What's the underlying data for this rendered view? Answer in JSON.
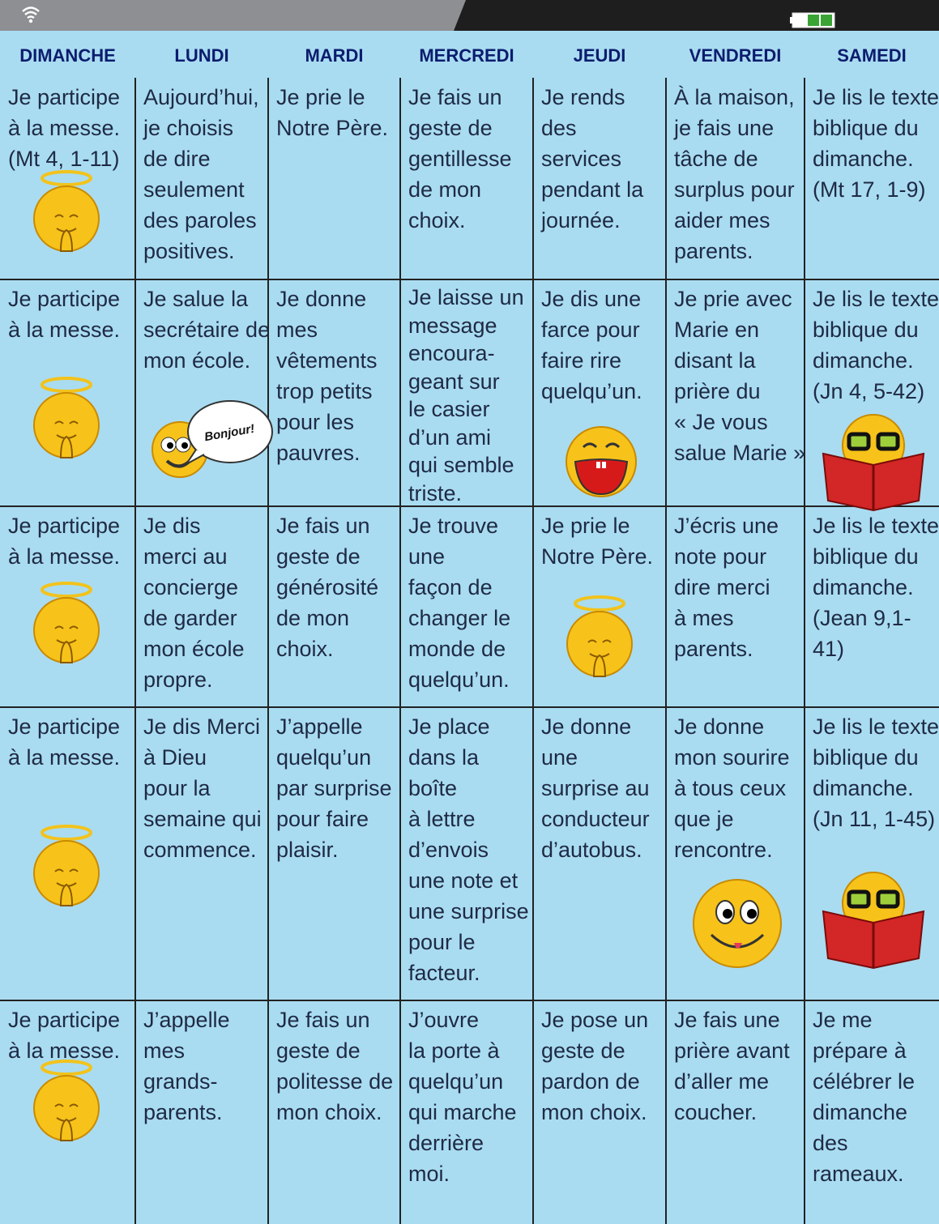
{
  "header": {
    "days": [
      "DIMANCHE",
      "LUNDI",
      "MARDI",
      "MERCREDI",
      "JEUDI",
      "VENDREDI",
      "SAMEDI"
    ]
  },
  "table": {
    "rows": [
      [
        {
          "lines": [
            "Je participe",
            "à la messe.",
            "(Mt 4, 1-11)"
          ]
        },
        {
          "lines": [
            "Aujourd’hui,",
            "je choisis",
            "de dire",
            "seulement",
            "des paroles",
            "positives."
          ]
        },
        {
          "lines": [
            "Je prie le",
            "Notre Père."
          ]
        },
        {
          "lines": [
            "Je fais un",
            "geste de",
            "gentillesse",
            "de mon",
            "choix."
          ]
        },
        {
          "lines": [
            "Je rends",
            "des",
            "services",
            "pendant la",
            "journée."
          ]
        },
        {
          "lines": [
            "À la maison,",
            "je fais une",
            "tâche de",
            "surplus pour",
            "aider mes",
            "parents."
          ]
        },
        {
          "lines": [
            "Je lis le texte",
            "biblique du",
            "dimanche.",
            "(Mt 17, 1-9)"
          ]
        }
      ],
      [
        {
          "lines": [
            "Je participe",
            "à la messe."
          ]
        },
        {
          "lines": [
            "Je salue la",
            "secrétaire de",
            "mon école."
          ],
          "bubble": "Bonjour!"
        },
        {
          "lines": [
            "Je donne",
            "mes",
            "vêtements",
            "trop petits",
            "pour les",
            "pauvres."
          ]
        },
        {
          "lines": [
            "Je laisse un",
            "message",
            "encoura-",
            "geant sur",
            "le casier",
            "d’un ami",
            "qui semble",
            "triste."
          ]
        },
        {
          "lines": [
            "Je dis une",
            "farce pour",
            "faire rire",
            "quelqu’un."
          ]
        },
        {
          "lines": [
            "Je prie avec",
            "Marie en",
            "disant la",
            "prière du",
            "« Je vous",
            "salue Marie »."
          ]
        },
        {
          "lines": [
            "Je lis le texte",
            "biblique du",
            "dimanche.",
            "(Jn 4, 5-42)"
          ]
        }
      ],
      [
        {
          "lines": [
            "Je participe",
            "à la messe."
          ]
        },
        {
          "lines": [
            "Je dis",
            "merci au",
            "concierge",
            "de garder",
            "mon école",
            "propre."
          ]
        },
        {
          "lines": [
            "Je fais un",
            "geste de",
            "générosité",
            "de mon",
            "choix."
          ]
        },
        {
          "lines": [
            "Je trouve",
            "une",
            "façon de",
            "changer le",
            "monde de",
            "quelqu’un."
          ]
        },
        {
          "lines": [
            "Je prie le",
            "Notre Père."
          ]
        },
        {
          "lines": [
            "J’écris une",
            "note pour",
            "dire merci",
            "à mes",
            "parents."
          ]
        },
        {
          "lines": [
            "Je lis le texte",
            "biblique du",
            "dimanche.",
            "(Jean 9,1-",
            "41)"
          ]
        }
      ],
      [
        {
          "lines": [
            "Je participe",
            "à la messe."
          ]
        },
        {
          "lines": [
            "Je dis Merci",
            "à Dieu",
            "pour la",
            "semaine qui",
            "commence."
          ]
        },
        {
          "lines": [
            "J’appelle",
            "quelqu’un",
            "par surprise",
            "pour faire",
            "plaisir."
          ]
        },
        {
          "lines": [
            "Je place",
            "dans la",
            "boîte",
            "à lettre",
            "d’envois",
            "une note et",
            "une surprise",
            "pour le",
            "facteur."
          ]
        },
        {
          "lines": [
            "Je donne",
            "une",
            "surprise au",
            "conducteur",
            "d’autobus."
          ]
        },
        {
          "lines": [
            "Je donne",
            "mon sourire",
            "à tous ceux",
            "que je",
            "rencontre."
          ]
        },
        {
          "lines": [
            "Je lis le texte",
            "biblique du",
            "dimanche.",
            "(Jn 11, 1-45)"
          ]
        }
      ],
      [
        {
          "lines": [
            "Je participe",
            "à la messe."
          ]
        },
        {
          "lines": [
            "J’appelle",
            "mes",
            "grands-",
            "parents."
          ]
        },
        {
          "lines": [
            "Je fais un",
            "geste de",
            "politesse de",
            "mon choix."
          ]
        },
        {
          "lines": [
            "J’ouvre",
            "la porte à",
            "quelqu’un",
            "qui marche",
            "derrière",
            "moi."
          ]
        },
        {
          "lines": [
            "Je pose un",
            "geste de",
            "pardon de",
            "mon choix."
          ]
        },
        {
          "lines": [
            "Je fais une",
            "prière avant",
            "d’aller me",
            "coucher."
          ]
        },
        {
          "lines": [
            "Je me",
            "prépare à",
            "célébrer le",
            "dimanche",
            "des",
            "rameaux."
          ]
        }
      ]
    ]
  }
}
